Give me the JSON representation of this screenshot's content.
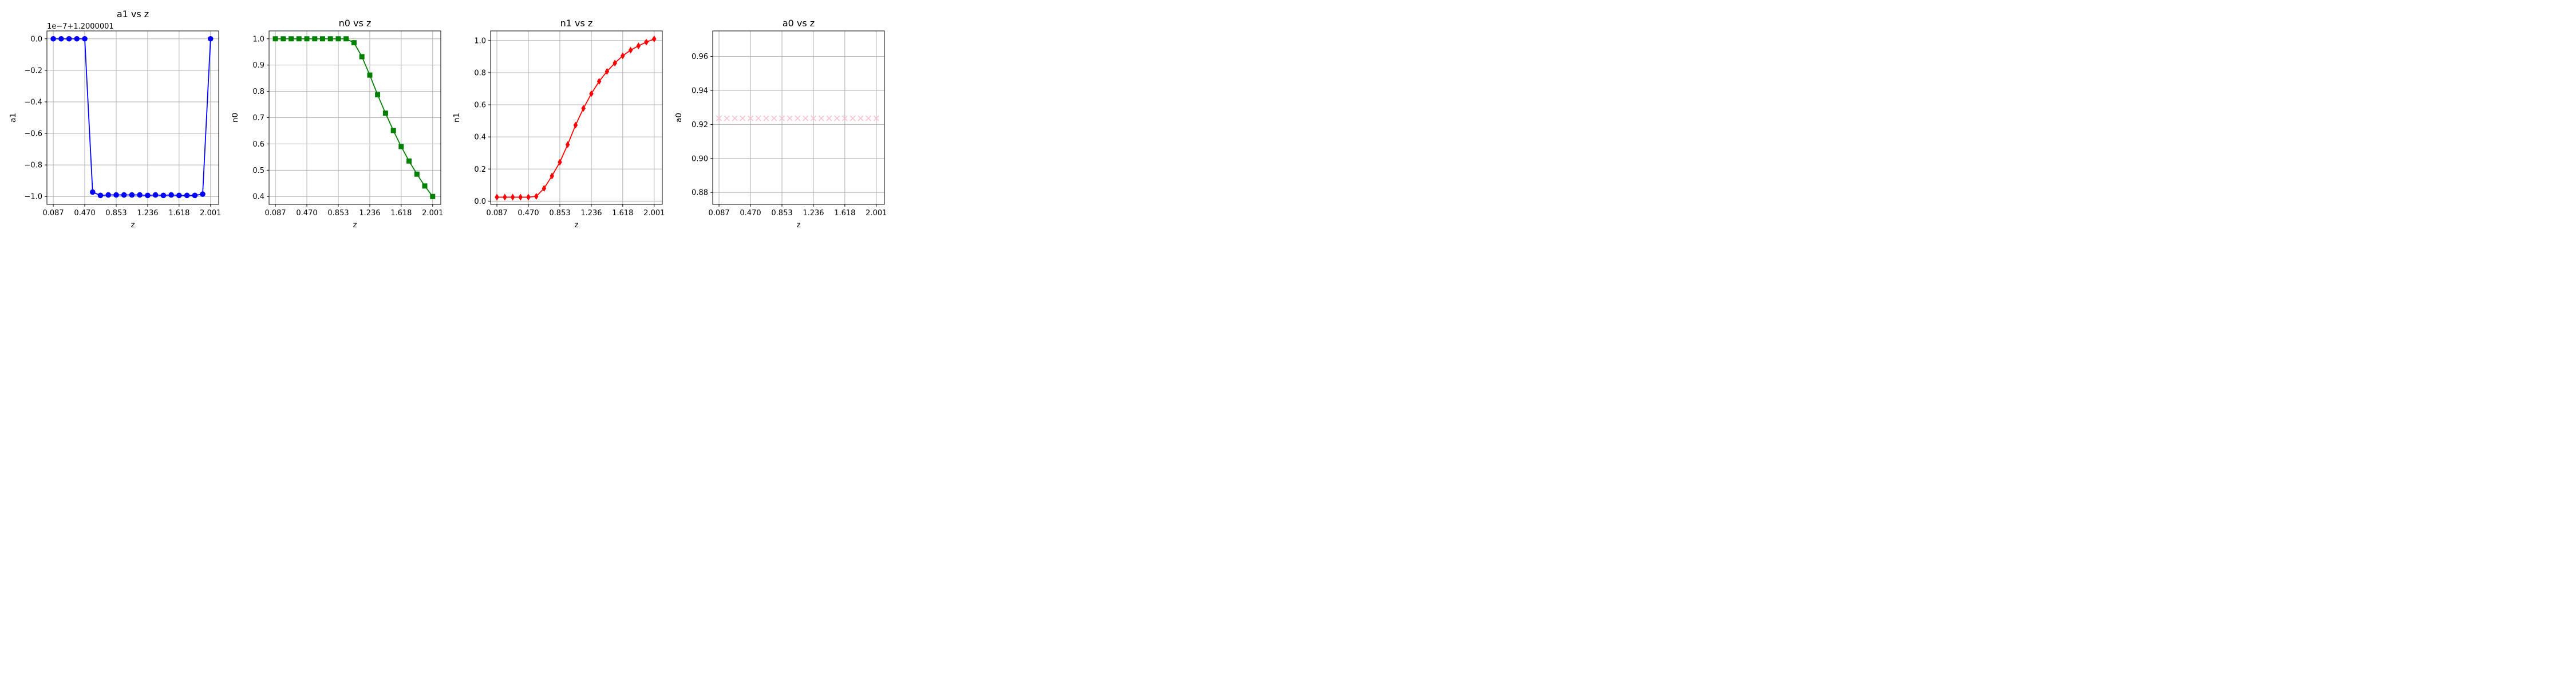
{
  "chart_data": [
    {
      "type": "line",
      "title": "a1 vs z",
      "xlabel": "z",
      "ylabel": "a1",
      "offset_label": "1e−7+1.2000001",
      "marker": "circle",
      "color": "#0000ff",
      "x_ticks": [
        "0.087",
        "0.470",
        "0.853",
        "1.236",
        "1.618",
        "2.001"
      ],
      "y_ticks": [
        "0.0",
        "−0.2",
        "−0.4",
        "−0.6",
        "−0.8",
        "−1.0"
      ],
      "xlim": [
        0.01,
        2.1
      ],
      "ylim": [
        -1.05,
        0.05
      ],
      "grid": true,
      "series": [
        {
          "x": [
            0.087,
            0.183,
            0.279,
            0.374,
            0.47,
            0.566,
            0.661,
            0.757,
            0.853,
            0.948,
            1.044,
            1.14,
            1.236,
            1.331,
            1.427,
            1.523,
            1.618,
            1.714,
            1.81,
            1.905,
            2.001
          ],
          "y": [
            0,
            0,
            0,
            0,
            0,
            -0.972,
            -0.993,
            -0.99,
            -0.99,
            -0.99,
            -0.99,
            -0.99,
            -0.993,
            -0.99,
            -0.993,
            -0.99,
            -0.993,
            -0.993,
            -0.993,
            -0.985,
            0
          ]
        }
      ]
    },
    {
      "type": "line",
      "title": "n0 vs z",
      "xlabel": "z",
      "ylabel": "n0",
      "offset_label": "",
      "marker": "square",
      "color": "#008000",
      "x_ticks": [
        "0.087",
        "0.470",
        "0.853",
        "1.236",
        "1.618",
        "2.001"
      ],
      "y_ticks": [
        "1.0",
        "0.9",
        "0.8",
        "0.7",
        "0.6",
        "0.5",
        "0.4"
      ],
      "xlim": [
        0.01,
        2.1
      ],
      "ylim": [
        0.37,
        1.03
      ],
      "grid": true,
      "series": [
        {
          "x": [
            0.087,
            0.183,
            0.279,
            0.374,
            0.47,
            0.566,
            0.661,
            0.757,
            0.853,
            0.948,
            1.044,
            1.14,
            1.236,
            1.331,
            1.427,
            1.523,
            1.618,
            1.714,
            1.81,
            1.905,
            2.001
          ],
          "y": [
            1.0,
            1.0,
            1.0,
            1.0,
            1.0,
            1.0,
            1.0,
            1.0,
            1.0,
            1.0,
            0.985,
            0.932,
            0.862,
            0.787,
            0.717,
            0.651,
            0.59,
            0.535,
            0.485,
            0.44,
            0.4
          ]
        }
      ]
    },
    {
      "type": "line",
      "title": "n1 vs z",
      "xlabel": "z",
      "ylabel": "n1",
      "offset_label": "",
      "marker": "diamond",
      "color": "#ff0000",
      "x_ticks": [
        "0.087",
        "0.470",
        "0.853",
        "1.236",
        "1.618",
        "2.001"
      ],
      "y_ticks": [
        "1.0",
        "0.8",
        "0.6",
        "0.4",
        "0.2",
        "0.0"
      ],
      "xlim": [
        0.01,
        2.1
      ],
      "ylim": [
        -0.02,
        1.06
      ],
      "grid": true,
      "series": [
        {
          "x": [
            0.087,
            0.183,
            0.279,
            0.374,
            0.47,
            0.566,
            0.661,
            0.757,
            0.853,
            0.948,
            1.044,
            1.14,
            1.236,
            1.331,
            1.427,
            1.523,
            1.618,
            1.714,
            1.81,
            1.905,
            2.001
          ],
          "y": [
            0.025,
            0.025,
            0.025,
            0.025,
            0.025,
            0.03,
            0.08,
            0.157,
            0.243,
            0.352,
            0.473,
            0.578,
            0.669,
            0.746,
            0.808,
            0.86,
            0.905,
            0.94,
            0.967,
            0.99,
            1.01
          ]
        }
      ]
    },
    {
      "type": "line",
      "title": "a0 vs z",
      "xlabel": "z",
      "ylabel": "a0",
      "offset_label": "",
      "marker": "x",
      "color": "#ffc0cb",
      "x_ticks": [
        "0.087",
        "0.470",
        "0.853",
        "1.236",
        "1.618",
        "2.001"
      ],
      "y_ticks": [
        "0.96",
        "0.94",
        "0.92",
        "0.90",
        "0.88"
      ],
      "xlim": [
        0.01,
        2.1
      ],
      "ylim": [
        0.873,
        0.975
      ],
      "grid": true,
      "series": [
        {
          "x": [
            0.087,
            0.183,
            0.279,
            0.374,
            0.47,
            0.566,
            0.661,
            0.757,
            0.853,
            0.948,
            1.044,
            1.14,
            1.236,
            1.331,
            1.427,
            1.523,
            1.618,
            1.714,
            1.81,
            1.905,
            2.001
          ],
          "y": [
            0.9236,
            0.9236,
            0.9236,
            0.9236,
            0.9236,
            0.9236,
            0.9236,
            0.9236,
            0.9236,
            0.9236,
            0.9236,
            0.9236,
            0.9236,
            0.9236,
            0.9236,
            0.9236,
            0.9236,
            0.9236,
            0.9236,
            0.9236,
            0.9236
          ]
        }
      ]
    }
  ]
}
